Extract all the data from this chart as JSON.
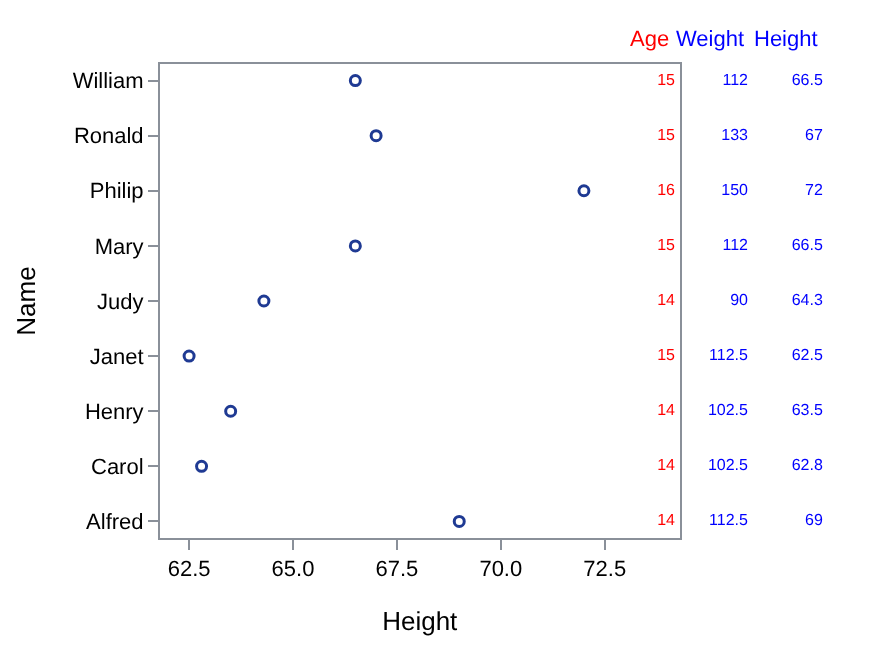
{
  "chart_data": {
    "type": "scatter",
    "orientation": "horizontal",
    "categories": [
      "William",
      "Ronald",
      "Philip",
      "Mary",
      "Judy",
      "Janet",
      "Henry",
      "Carol",
      "Alfred"
    ],
    "xlabel": "Height",
    "ylabel": "Name",
    "xlim": [
      61.8,
      74.3
    ],
    "xticks": [
      {
        "value": 62.5,
        "label": "62.5"
      },
      {
        "value": 65,
        "label": "65.0"
      },
      {
        "value": 67.5,
        "label": "67.5"
      },
      {
        "value": 70,
        "label": "70.0"
      },
      {
        "value": 72.5,
        "label": "72.5"
      }
    ],
    "marker": "circle",
    "grid": false,
    "data_labels": true,
    "series": [
      {
        "name": "Height",
        "color": "#1f3a93",
        "values": [
          66.5,
          67,
          72,
          66.5,
          64.3,
          62.5,
          63.5,
          62.8,
          69
        ]
      }
    ],
    "annotations": [
      "Age",
      "15",
      "15",
      "16",
      "15",
      "14",
      "15",
      "14",
      "14",
      "14",
      "Weight",
      "112",
      "133",
      "150",
      "112",
      "90",
      "112.5",
      "102.5",
      "102.5",
      "112.5"
    ]
  }
}
